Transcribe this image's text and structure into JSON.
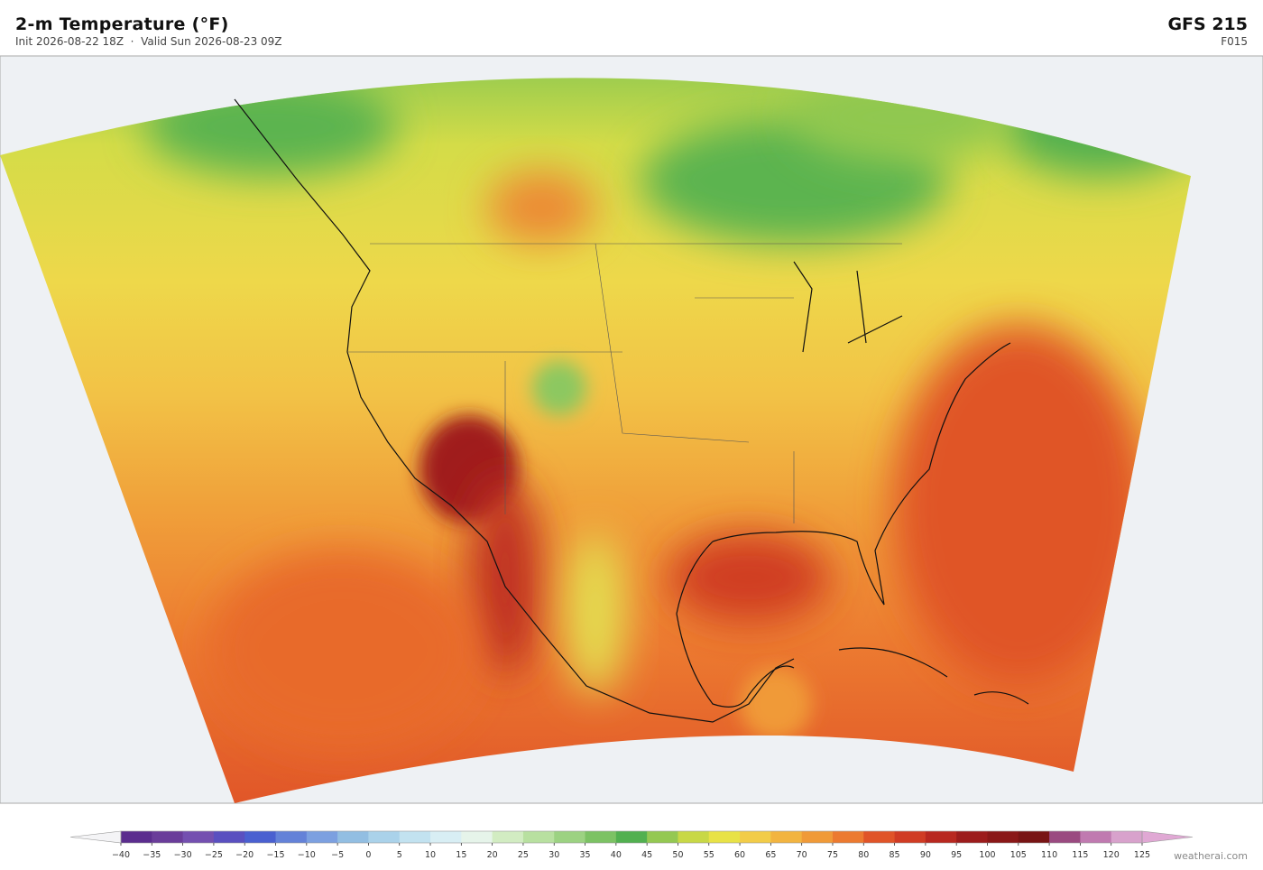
{
  "header": {
    "title": "2-m Temperature  (°F)",
    "subtitle": "Init 2026-08-22 18Z  ·  Valid Sun 2026-08-23 09Z",
    "model": "GFS  215",
    "forecast_hour": "F015"
  },
  "colorbar": {
    "ticks": [
      {
        "value": -40,
        "label": "−40"
      },
      {
        "value": -35,
        "label": "−35"
      },
      {
        "value": -30,
        "label": "−30"
      },
      {
        "value": -25,
        "label": "−25"
      },
      {
        "value": -20,
        "label": "−20"
      },
      {
        "value": -15,
        "label": "−15"
      },
      {
        "value": -10,
        "label": "−10"
      },
      {
        "value": -5,
        "label": "−5"
      },
      0,
      5,
      10,
      15,
      20,
      25,
      30,
      35,
      40,
      45,
      50,
      55,
      60,
      65,
      70,
      75,
      80,
      85,
      90,
      95,
      100,
      105,
      110,
      115,
      120,
      125
    ],
    "colors": [
      "#5b2d8e",
      "#6a3d9a",
      "#7450b0",
      "#5a50c0",
      "#4a60d0",
      "#6482d8",
      "#7ca0e0",
      "#92bee2",
      "#aad2ea",
      "#c2e2f0",
      "#d8eef4",
      "#e6f4ea",
      "#d2ecc2",
      "#b8e0a0",
      "#9cd282",
      "#7cc264",
      "#52b050",
      "#94c852",
      "#c8d846",
      "#e8e246",
      "#f2cc48",
      "#f2b440",
      "#f09a38",
      "#ec7a30",
      "#e05428",
      "#d03c24",
      "#b82820",
      "#9c1c1c",
      "#8a1818",
      "#781414",
      "#9a4a80",
      "#c07ab0",
      "#d8a2cc"
    ],
    "under_color": "#f4f4f6",
    "over_color": "#e0a8d4"
  },
  "footer": {
    "credit": "weatherai.com"
  }
}
